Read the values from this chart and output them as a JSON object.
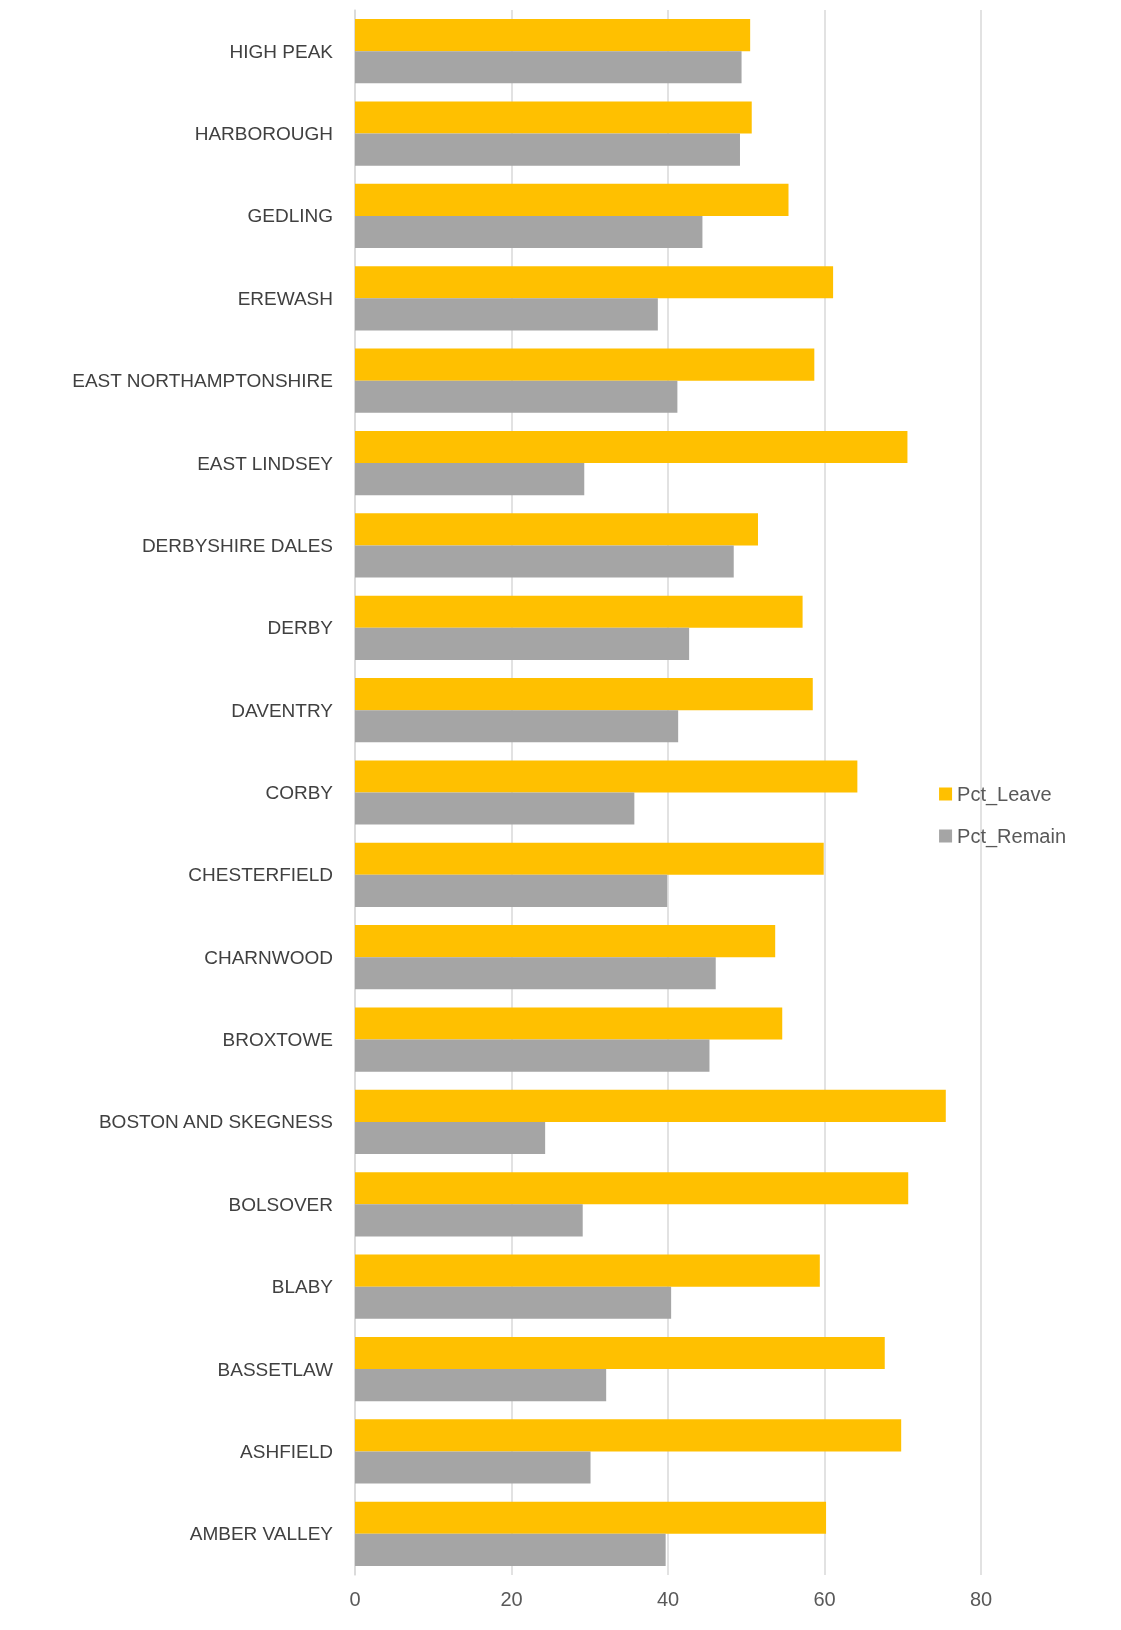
{
  "chart_data": {
    "type": "bar",
    "orientation": "horizontal",
    "categories": [
      "HIGH PEAK",
      "HARBOROUGH",
      "GEDLING",
      "EREWASH",
      "EAST NORTHAMPTONSHIRE",
      "EAST LINDSEY",
      "DERBYSHIRE DALES",
      "DERBY",
      "DAVENTRY",
      "CORBY",
      "CHESTERFIELD",
      "CHARNWOOD",
      "BROXTOWE",
      "BOSTON AND SKEGNESS",
      "BOLSOVER",
      "BLABY",
      "BASSETLAW",
      "ASHFIELD",
      "AMBER VALLEY"
    ],
    "series": [
      {
        "name": "Pct_Leave",
        "color": "#ffc000",
        "values": [
          50.5,
          50.7,
          55.4,
          61.1,
          58.7,
          70.6,
          51.5,
          57.2,
          58.5,
          64.2,
          59.9,
          53.7,
          54.6,
          75.5,
          70.7,
          59.4,
          67.7,
          69.8,
          60.2
        ]
      },
      {
        "name": "Pct_Remain",
        "color": "#a5a5a5",
        "values": [
          49.4,
          49.2,
          44.4,
          38.7,
          41.2,
          29.3,
          48.4,
          42.7,
          41.3,
          35.7,
          39.9,
          46.1,
          45.3,
          24.3,
          29.1,
          40.4,
          32.1,
          30.1,
          39.7
        ]
      }
    ],
    "xlim": [
      0,
      80
    ],
    "xticks": [
      0,
      20,
      40,
      60,
      80
    ],
    "grid": "x",
    "legend": "right"
  }
}
